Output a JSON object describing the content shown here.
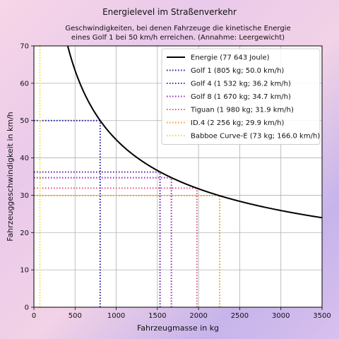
{
  "chart_data": {
    "type": "line",
    "title": "Energielevel im Straßenverkehr",
    "subtitle_lines": [
      "Geschwindigkeiten, bei denen Fahrzeuge die kinetische Energie",
      "eines Golf 1 bei 50 km/h erreichen. (Annahme: Leergewicht)"
    ],
    "xlabel": "Fahrzeugmasse in kg",
    "ylabel": "Fahrzeuggeschwindigkeit in km/h",
    "xlim": [
      0,
      3500
    ],
    "ylim": [
      0,
      70
    ],
    "x_ticks": [
      "0",
      "500",
      "1000",
      "1500",
      "2000",
      "2500",
      "3000",
      "3500"
    ],
    "y_ticks": [
      "0",
      "10",
      "20",
      "30",
      "40",
      "50",
      "60",
      "70"
    ],
    "grid": true,
    "legend_position": "top-right",
    "energy_curve": {
      "label": "Energie (77 643 Joule)",
      "color": "#000000",
      "energy_joule": 77643
    },
    "vehicles": [
      {
        "label": "Golf 1 (805 kg; 50.0 km/h)",
        "mass": 805,
        "speed": 50.0,
        "color": "#1a1aa0"
      },
      {
        "label": "Golf 4 (1 532 kg; 36.2 km/h)",
        "mass": 1532,
        "speed": 36.2,
        "color": "#5a1aaa"
      },
      {
        "label": "Golf 8 (1 670 kg; 34.7 km/h)",
        "mass": 1670,
        "speed": 34.7,
        "color": "#9a22b4"
      },
      {
        "label": "Tiguan (1 980 kg; 31.9 km/h)",
        "mass": 1980,
        "speed": 31.9,
        "color": "#e4507a"
      },
      {
        "label": "ID.4 (2 256 kg; 29.9 km/h)",
        "mass": 2256,
        "speed": 29.9,
        "color": "#f0962a"
      },
      {
        "label": "Babboe Curve-E (73 kg; 166.0 km/h)",
        "mass": 73,
        "speed": 166.0,
        "color": "#f0e02a"
      }
    ]
  }
}
